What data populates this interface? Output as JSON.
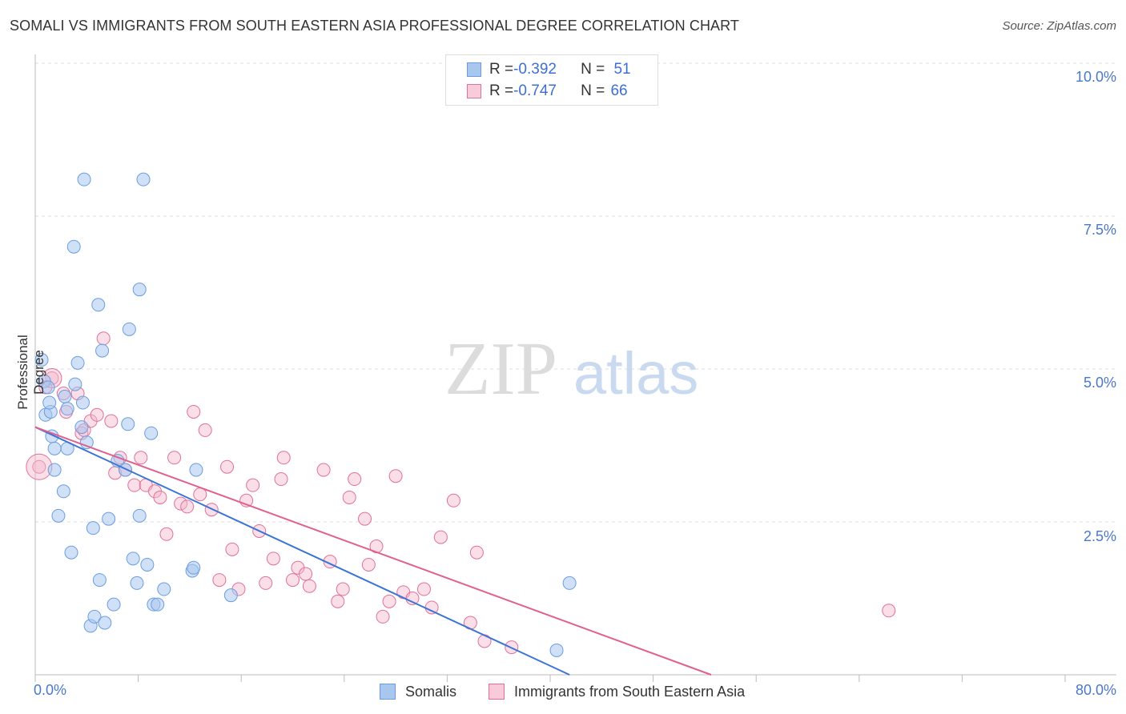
{
  "title": "SOMALI VS IMMIGRANTS FROM SOUTH EASTERN ASIA PROFESSIONAL DEGREE CORRELATION CHART",
  "source": "Source: ZipAtlas.com",
  "watermark": {
    "zip": "ZIP",
    "atlas": "atlas"
  },
  "colors": {
    "blue": "#6a9de0",
    "blue_fill": "#a9c6ef",
    "pink": "#e07098",
    "pink_fill": "#f4b7cb",
    "axis_text": "#4a78c8"
  },
  "legend_top": {
    "rows": [
      {
        "r_label": "R = ",
        "r_value": "-0.392",
        "n_label": "N = ",
        "n_value": "51"
      },
      {
        "r_label": "R = ",
        "r_value": "-0.747",
        "n_label": "N = ",
        "n_value": "66"
      }
    ]
  },
  "legend_bottom": {
    "series1": "Somalis",
    "series2": "Immigrants from South Eastern Asia"
  },
  "chart_data": {
    "type": "scatter",
    "title": "SOMALI VS IMMIGRANTS FROM SOUTH EASTERN ASIA PROFESSIONAL DEGREE CORRELATION CHART",
    "ylabel": "Professional Degree",
    "xlabel": "",
    "x_tick_labels": [
      "0.0%",
      "80.0%"
    ],
    "y_tick_labels": [
      "10.0%",
      "7.5%",
      "5.0%",
      "2.5%"
    ],
    "xlim": [
      0,
      80
    ],
    "ylim": [
      0,
      10.25
    ],
    "grid": true,
    "series": [
      {
        "name": "Somalis",
        "r": -0.392,
        "n": 51,
        "trend": {
          "x": [
            0,
            41.5
          ],
          "y": [
            4.05,
            0
          ]
        },
        "points": [
          {
            "x": 0.5,
            "y": 5.15
          },
          {
            "x": 0.7,
            "y": 4.8
          },
          {
            "x": 0.8,
            "y": 4.25
          },
          {
            "x": 1.0,
            "y": 4.7
          },
          {
            "x": 1.2,
            "y": 4.3
          },
          {
            "x": 1.1,
            "y": 4.45
          },
          {
            "x": 1.3,
            "y": 3.9
          },
          {
            "x": 1.5,
            "y": 3.35
          },
          {
            "x": 1.5,
            "y": 3.7
          },
          {
            "x": 1.8,
            "y": 2.6
          },
          {
            "x": 2.2,
            "y": 3.0
          },
          {
            "x": 2.3,
            "y": 4.55
          },
          {
            "x": 2.5,
            "y": 4.35
          },
          {
            "x": 2.5,
            "y": 3.7
          },
          {
            "x": 2.8,
            "y": 2.0
          },
          {
            "x": 3.0,
            "y": 7.0
          },
          {
            "x": 3.1,
            "y": 4.75
          },
          {
            "x": 3.3,
            "y": 5.1
          },
          {
            "x": 3.7,
            "y": 4.45
          },
          {
            "x": 3.8,
            "y": 8.1
          },
          {
            "x": 3.6,
            "y": 4.05
          },
          {
            "x": 4.0,
            "y": 3.8
          },
          {
            "x": 4.3,
            "y": 0.8
          },
          {
            "x": 4.5,
            "y": 2.4
          },
          {
            "x": 4.6,
            "y": 0.95
          },
          {
            "x": 4.9,
            "y": 6.05
          },
          {
            "x": 5.0,
            "y": 1.55
          },
          {
            "x": 5.2,
            "y": 5.3
          },
          {
            "x": 5.4,
            "y": 0.85
          },
          {
            "x": 5.7,
            "y": 2.55
          },
          {
            "x": 6.1,
            "y": 1.15
          },
          {
            "x": 6.4,
            "y": 3.5
          },
          {
            "x": 7.0,
            "y": 3.35
          },
          {
            "x": 7.2,
            "y": 4.1
          },
          {
            "x": 7.3,
            "y": 5.65
          },
          {
            "x": 7.6,
            "y": 1.9
          },
          {
            "x": 7.9,
            "y": 1.5
          },
          {
            "x": 8.1,
            "y": 2.6
          },
          {
            "x": 8.1,
            "y": 6.3
          },
          {
            "x": 8.4,
            "y": 8.1
          },
          {
            "x": 8.7,
            "y": 1.8
          },
          {
            "x": 9.0,
            "y": 3.95
          },
          {
            "x": 9.2,
            "y": 1.15
          },
          {
            "x": 9.5,
            "y": 1.15
          },
          {
            "x": 10.0,
            "y": 1.4
          },
          {
            "x": 12.2,
            "y": 1.7
          },
          {
            "x": 12.3,
            "y": 1.75
          },
          {
            "x": 12.5,
            "y": 3.35
          },
          {
            "x": 15.2,
            "y": 1.3
          },
          {
            "x": 40.5,
            "y": 0.4
          },
          {
            "x": 41.5,
            "y": 1.5
          }
        ]
      },
      {
        "name": "Immigrants from South Eastern Asia",
        "r": -0.747,
        "n": 66,
        "trend": {
          "x": [
            0,
            52.5
          ],
          "y": [
            4.05,
            0
          ]
        },
        "points": [
          {
            "x": 0.3,
            "y": 3.4
          },
          {
            "x": 0.8,
            "y": 4.7
          },
          {
            "x": 1.3,
            "y": 4.85
          },
          {
            "x": 2.2,
            "y": 4.6
          },
          {
            "x": 2.4,
            "y": 4.3
          },
          {
            "x": 3.3,
            "y": 4.6
          },
          {
            "x": 3.6,
            "y": 3.95
          },
          {
            "x": 3.8,
            "y": 4.0
          },
          {
            "x": 4.3,
            "y": 4.15
          },
          {
            "x": 4.8,
            "y": 4.25
          },
          {
            "x": 5.3,
            "y": 5.5
          },
          {
            "x": 5.9,
            "y": 4.15
          },
          {
            "x": 6.2,
            "y": 3.3
          },
          {
            "x": 6.6,
            "y": 3.55
          },
          {
            "x": 7.0,
            "y": 3.35
          },
          {
            "x": 7.7,
            "y": 3.1
          },
          {
            "x": 8.2,
            "y": 3.55
          },
          {
            "x": 8.6,
            "y": 3.1
          },
          {
            "x": 9.3,
            "y": 3.0
          },
          {
            "x": 9.7,
            "y": 2.9
          },
          {
            "x": 10.2,
            "y": 2.3
          },
          {
            "x": 10.8,
            "y": 3.55
          },
          {
            "x": 11.3,
            "y": 2.8
          },
          {
            "x": 11.8,
            "y": 2.75
          },
          {
            "x": 12.3,
            "y": 4.3
          },
          {
            "x": 12.8,
            "y": 2.95
          },
          {
            "x": 13.2,
            "y": 4.0
          },
          {
            "x": 13.7,
            "y": 2.7
          },
          {
            "x": 14.3,
            "y": 1.55
          },
          {
            "x": 14.9,
            "y": 3.4
          },
          {
            "x": 15.3,
            "y": 2.05
          },
          {
            "x": 15.8,
            "y": 1.4
          },
          {
            "x": 16.4,
            "y": 2.85
          },
          {
            "x": 16.9,
            "y": 3.1
          },
          {
            "x": 17.4,
            "y": 2.35
          },
          {
            "x": 17.9,
            "y": 1.5
          },
          {
            "x": 18.5,
            "y": 1.9
          },
          {
            "x": 19.1,
            "y": 3.2
          },
          {
            "x": 19.3,
            "y": 3.55
          },
          {
            "x": 20.0,
            "y": 1.55
          },
          {
            "x": 20.4,
            "y": 1.75
          },
          {
            "x": 21.0,
            "y": 1.65
          },
          {
            "x": 21.3,
            "y": 1.45
          },
          {
            "x": 22.4,
            "y": 3.35
          },
          {
            "x": 22.9,
            "y": 1.85
          },
          {
            "x": 23.5,
            "y": 1.2
          },
          {
            "x": 23.9,
            "y": 1.4
          },
          {
            "x": 24.4,
            "y": 2.9
          },
          {
            "x": 24.8,
            "y": 3.2
          },
          {
            "x": 25.6,
            "y": 2.55
          },
          {
            "x": 25.9,
            "y": 1.8
          },
          {
            "x": 26.5,
            "y": 2.1
          },
          {
            "x": 27.0,
            "y": 0.95
          },
          {
            "x": 27.5,
            "y": 1.2
          },
          {
            "x": 28.0,
            "y": 3.25
          },
          {
            "x": 28.6,
            "y": 1.35
          },
          {
            "x": 29.3,
            "y": 1.25
          },
          {
            "x": 30.2,
            "y": 1.4
          },
          {
            "x": 30.8,
            "y": 1.1
          },
          {
            "x": 31.5,
            "y": 2.25
          },
          {
            "x": 32.5,
            "y": 2.85
          },
          {
            "x": 33.8,
            "y": 0.85
          },
          {
            "x": 34.3,
            "y": 2.0
          },
          {
            "x": 34.9,
            "y": 0.55
          },
          {
            "x": 37.0,
            "y": 0.45
          },
          {
            "x": 66.3,
            "y": 1.05
          }
        ]
      }
    ]
  }
}
